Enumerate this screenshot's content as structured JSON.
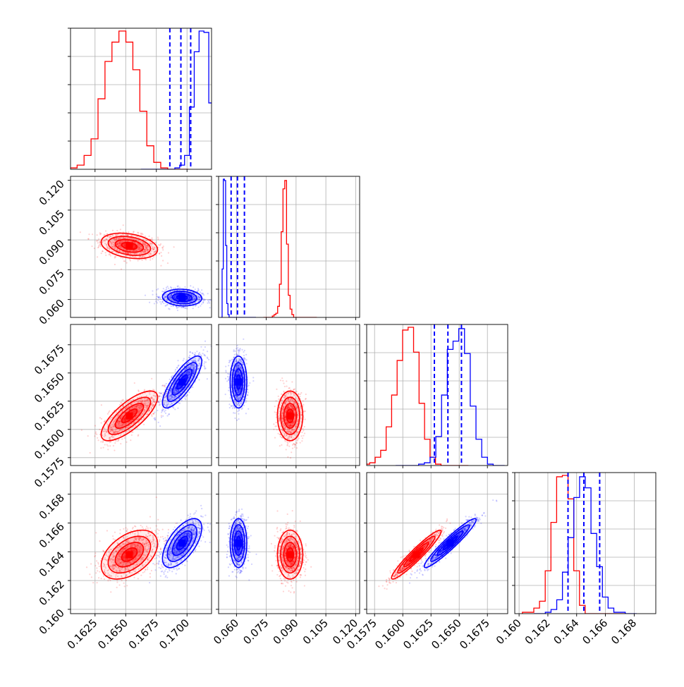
{
  "chart_data": {
    "type": "corner",
    "parameters": [
      {
        "ticks": [
          "0.1625",
          "0.1650",
          "0.1675",
          "0.1700"
        ],
        "range": [
          0.1605,
          0.172
        ]
      },
      {
        "ticks": [
          "0.060",
          "0.075",
          "0.090",
          "0.105",
          "0.120"
        ],
        "range": [
          0.051,
          0.122
        ]
      },
      {
        "ticks": [
          "0.1575",
          "0.1600",
          "0.1625",
          "0.1650",
          "0.1675"
        ],
        "range": [
          0.1568,
          0.1693
        ]
      },
      {
        "ticks": [
          "0.160",
          "0.162",
          "0.164",
          "0.166",
          "0.168"
        ],
        "range": [
          0.1597,
          0.1695
        ]
      }
    ],
    "grid": true,
    "series": [
      {
        "color": "#ff0000",
        "mean": [
          0.1653,
          0.087,
          0.1612,
          0.1638
        ],
        "std": [
          0.00115,
          0.0032,
          0.0011,
          0.00085
        ],
        "corr": {
          "0-1": -0.3,
          "0-2": 0.75,
          "0-3": 0.45,
          "1-2": 0.0,
          "1-3": 0.0,
          "2-3": 0.95
        },
        "histograms": [
          [
            0.01,
            0.03,
            0.1,
            0.22,
            0.51,
            0.78,
            0.92,
            1.0,
            0.92,
            0.72,
            0.42,
            0.17,
            0.05,
            0.01,
            0.0,
            0.0,
            0.0
          ],
          [
            0.0,
            0.0,
            0.0,
            0.0,
            0.0,
            0.01,
            0.02,
            0.03,
            0.08,
            0.24,
            0.62,
            0.93,
            0.99,
            0.53,
            0.16,
            0.06,
            0.02,
            0.0,
            0.0,
            0.0,
            0.0,
            0.0,
            0.0,
            0.0,
            0.0,
            0.0,
            0.0,
            0.0,
            0.0,
            0.0
          ],
          [
            0.01,
            0.02,
            0.06,
            0.11,
            0.28,
            0.51,
            0.76,
            0.98,
            1.0,
            0.82,
            0.45,
            0.19,
            0.06,
            0.01,
            0.0,
            0.0,
            0.0,
            0.0,
            0.0
          ],
          [
            0.01,
            0.01,
            0.04,
            0.09,
            0.31,
            0.66,
            0.99,
            1.0,
            0.83,
            0.31,
            0.06,
            0.0,
            0.0,
            0.0,
            0.0,
            0.0,
            0.0,
            0.0
          ]
        ]
      },
      {
        "color": "#0000ff",
        "mean": [
          0.1696,
          0.061,
          0.1642,
          0.1646
        ],
        "std": [
          0.0008,
          0.0021,
          0.00115,
          0.00085
        ],
        "corr": {
          "0-1": -0.1,
          "0-2": 0.8,
          "0-3": 0.62,
          "1-2": 0.0,
          "1-3": 0.0,
          "2-3": 0.95
        },
        "quantiles": [
          [
            0.1686,
            0.1695,
            0.1703
          ],
          [
            0.0573,
            0.0605,
            0.064
          ],
          [
            0.1628,
            0.164,
            0.1652
          ],
          [
            0.1634,
            0.1645,
            0.1656
          ]
        ],
        "histograms": [
          [
            0.0,
            0.0,
            0.0,
            0.0,
            0.0,
            0.0,
            0.0,
            0.01,
            0.03,
            0.1,
            0.45,
            0.85,
            1.0,
            0.99,
            0.48,
            0.14,
            0.02
          ],
          [
            0.0,
            0.35,
            1.0,
            0.99,
            0.52,
            0.1,
            0.02,
            0.0,
            0.0,
            0.0,
            0.0,
            0.0,
            0.0,
            0.0,
            0.0,
            0.0,
            0.0,
            0.0,
            0.0,
            0.0,
            0.0,
            0.0,
            0.0,
            0.0,
            0.0,
            0.0,
            0.0,
            0.0,
            0.0,
            0.0
          ],
          [
            0.0,
            0.0,
            0.0,
            0.0,
            0.01,
            0.02,
            0.06,
            0.21,
            0.51,
            0.84,
            0.9,
            0.99,
            0.81,
            0.43,
            0.19,
            0.06,
            0.01,
            0.0,
            0.0
          ],
          [
            0.0,
            0.0,
            0.01,
            0.03,
            0.1,
            0.3,
            0.55,
            0.84,
            0.99,
            0.91,
            0.58,
            0.34,
            0.12,
            0.04,
            0.01,
            0.01,
            0.0,
            0.0
          ]
        ]
      }
    ]
  }
}
